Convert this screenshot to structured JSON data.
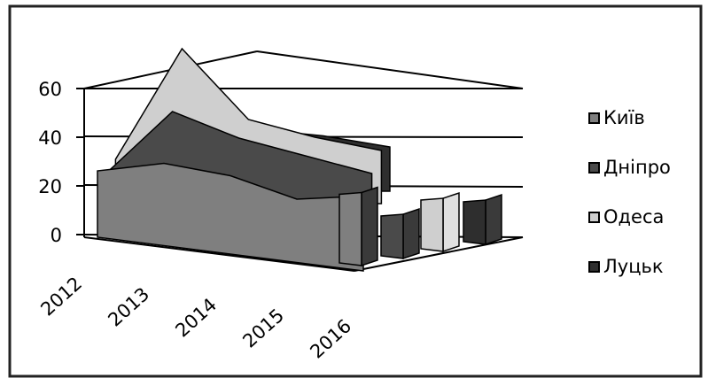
{
  "chart_data": {
    "type": "area",
    "view": "3d",
    "categories": [
      "2012",
      "2013",
      "2014",
      "2015",
      "2016"
    ],
    "series": [
      {
        "name": "Київ",
        "values": [
          30,
          37,
          35,
          28,
          33
        ],
        "color": "#7f7f7f"
      },
      {
        "name": "Дніпро",
        "values": [
          20,
          48,
          36,
          28,
          20
        ],
        "color": "#4a4a4a"
      },
      {
        "name": "Одеса",
        "values": [
          20,
          70,
          38,
          30,
          24
        ],
        "color": "#cfcfcf"
      },
      {
        "name": "Луцьк",
        "values": [
          20,
          33,
          28,
          25,
          20
        ],
        "color": "#2e2e2e"
      }
    ],
    "yticks": [
      "0",
      "20",
      "40",
      "60"
    ],
    "ylim": [
      0,
      60
    ],
    "grid": true,
    "legend_position": "right"
  }
}
